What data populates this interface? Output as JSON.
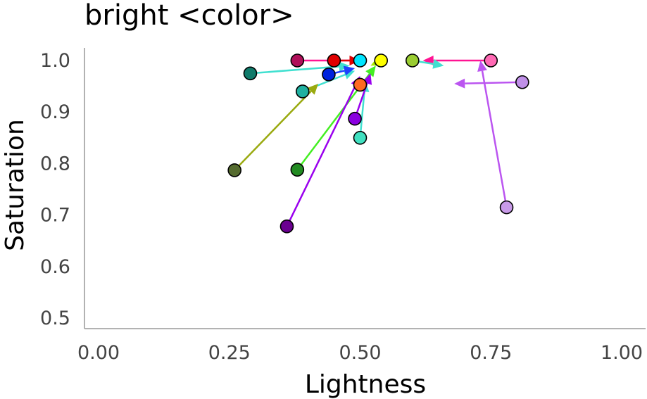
{
  "chart_data": {
    "type": "scatter",
    "title": "bright <color>",
    "xlabel": "Lightness",
    "ylabel": "Saturation",
    "xlim": [
      0.0,
      1.0
    ],
    "ylim": [
      0.5,
      1.0
    ],
    "x_ticks": [
      "0.00",
      "0.25",
      "0.50",
      "0.75",
      "1.00"
    ],
    "y_ticks": [
      "0.5",
      "0.6",
      "0.7",
      "0.8",
      "0.9",
      "1.0"
    ],
    "grid": false,
    "legend": "none",
    "arrows": [
      {
        "color": "#ff1493",
        "from": [
          0.38,
          1.0
        ],
        "to": [
          0.5,
          1.0
        ]
      },
      {
        "color": "#ff1493",
        "from": [
          0.75,
          1.0
        ],
        "to": [
          0.62,
          1.0
        ]
      },
      {
        "color": "#e00000",
        "from": [
          0.45,
          1.0
        ],
        "to": [
          0.5,
          1.0
        ]
      },
      {
        "color": "#40e0d0",
        "from": [
          0.29,
          0.975
        ],
        "to": [
          0.48,
          0.99
        ]
      },
      {
        "color": "#40e0d0",
        "from": [
          0.39,
          0.94
        ],
        "to": [
          0.49,
          0.98
        ]
      },
      {
        "color": "#40e0d0",
        "from": [
          0.5,
          0.85
        ],
        "to": [
          0.51,
          0.96
        ]
      },
      {
        "color": "#40e0d0",
        "from": [
          0.6,
          1.0
        ],
        "to": [
          0.66,
          0.99
        ]
      },
      {
        "color": "#1e40ff",
        "from": [
          0.44,
          0.973
        ],
        "to": [
          0.49,
          0.985
        ]
      },
      {
        "color": "#9aaa10",
        "from": [
          0.26,
          0.787
        ],
        "to": [
          0.42,
          0.955
        ]
      },
      {
        "color": "#44ee22",
        "from": [
          0.38,
          0.788
        ],
        "to": [
          0.53,
          0.99
        ]
      },
      {
        "color": "#aaee00",
        "from": [
          0.54,
          1.0
        ],
        "to": [
          0.52,
          0.99
        ]
      },
      {
        "color": "#9a00ee",
        "from": [
          0.36,
          0.678
        ],
        "to": [
          0.5,
          0.97
        ]
      },
      {
        "color": "#9a00ee",
        "from": [
          0.49,
          0.887
        ],
        "to": [
          0.52,
          0.975
        ]
      },
      {
        "color": "#bb55f0",
        "from": [
          0.81,
          0.958
        ],
        "to": [
          0.68,
          0.955
        ]
      },
      {
        "color": "#bb55f0",
        "from": [
          0.78,
          0.715
        ],
        "to": [
          0.73,
          1.0
        ]
      }
    ],
    "points": [
      {
        "x": 0.38,
        "y": 1.0,
        "color": "#b0105a"
      },
      {
        "x": 0.45,
        "y": 1.0,
        "color": "#e00000"
      },
      {
        "x": 0.5,
        "y": 1.0,
        "color": "#00e5ff"
      },
      {
        "x": 0.54,
        "y": 1.0,
        "color": "#ffff00"
      },
      {
        "x": 0.6,
        "y": 1.0,
        "color": "#9acd32"
      },
      {
        "x": 0.75,
        "y": 1.0,
        "color": "#ff69b4"
      },
      {
        "x": 0.29,
        "y": 0.975,
        "color": "#107a6a"
      },
      {
        "x": 0.44,
        "y": 0.973,
        "color": "#0022dd"
      },
      {
        "x": 0.81,
        "y": 0.958,
        "color": "#c090e8"
      },
      {
        "x": 0.5,
        "y": 0.953,
        "color": "#ff6a20"
      },
      {
        "x": 0.39,
        "y": 0.94,
        "color": "#20b0a0"
      },
      {
        "x": 0.49,
        "y": 0.887,
        "color": "#8a00e0"
      },
      {
        "x": 0.5,
        "y": 0.85,
        "color": "#40e0c0"
      },
      {
        "x": 0.26,
        "y": 0.787,
        "color": "#556b2f"
      },
      {
        "x": 0.38,
        "y": 0.788,
        "color": "#228b22"
      },
      {
        "x": 0.78,
        "y": 0.715,
        "color": "#c89ae8"
      },
      {
        "x": 0.36,
        "y": 0.678,
        "color": "#6a0090"
      }
    ]
  }
}
